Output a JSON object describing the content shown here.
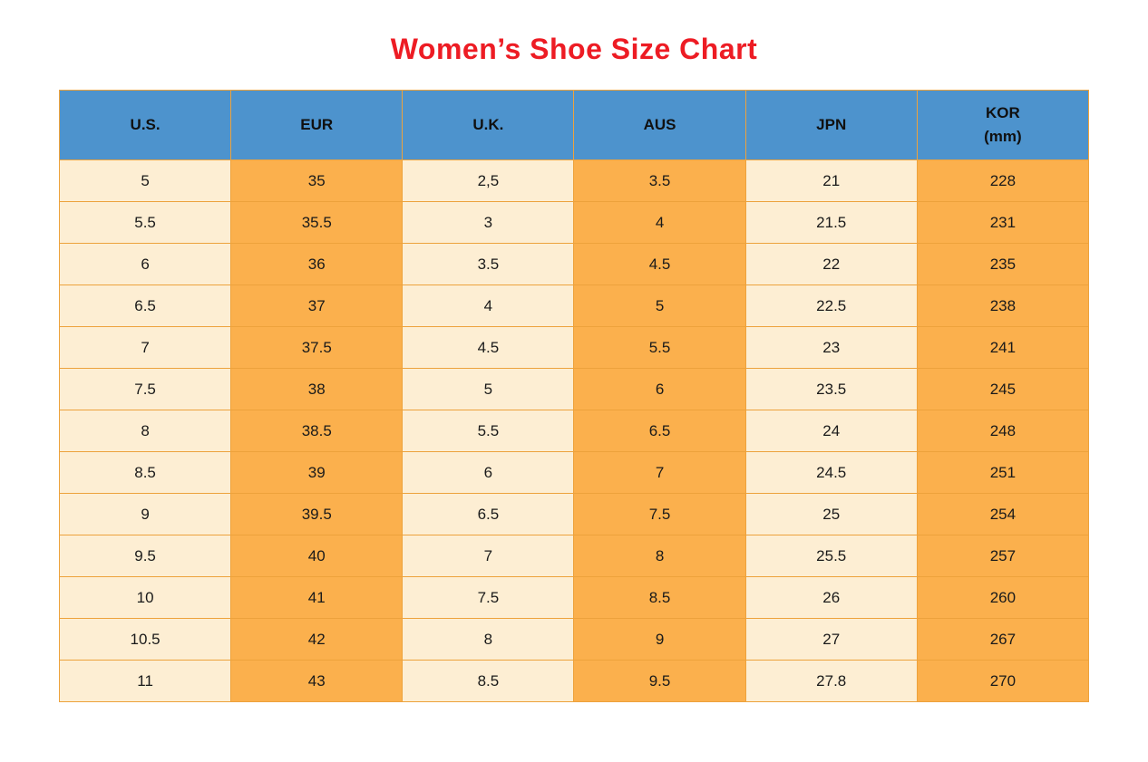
{
  "title": "Women’s Shoe Size Chart",
  "colors": {
    "title_red": "#ed1c24",
    "header_blue": "#4d93cd",
    "column_light": "#fdeed3",
    "column_orange": "#fbb04d",
    "border_orange": "#eda23c",
    "text_dark": "#1a1a1a"
  },
  "chart_data": {
    "type": "table",
    "title": "Women’s Shoe Size Chart",
    "columns": [
      "U.S.",
      "EUR",
      "U.K.",
      "AUS",
      "JPN",
      "KOR\n(mm)"
    ],
    "rows": [
      [
        "5",
        "35",
        "2,5",
        "3.5",
        "21",
        "228"
      ],
      [
        "5.5",
        "35.5",
        "3",
        "4",
        "21.5",
        "231"
      ],
      [
        "6",
        "36",
        "3.5",
        "4.5",
        "22",
        "235"
      ],
      [
        "6.5",
        "37",
        "4",
        "5",
        "22.5",
        "238"
      ],
      [
        "7",
        "37.5",
        "4.5",
        "5.5",
        "23",
        "241"
      ],
      [
        "7.5",
        "38",
        "5",
        "6",
        "23.5",
        "245"
      ],
      [
        "8",
        "38.5",
        "5.5",
        "6.5",
        "24",
        "248"
      ],
      [
        "8.5",
        "39",
        "6",
        "7",
        "24.5",
        "251"
      ],
      [
        "9",
        "39.5",
        "6.5",
        "7.5",
        "25",
        "254"
      ],
      [
        "9.5",
        "40",
        "7",
        "8",
        "25.5",
        "257"
      ],
      [
        "10",
        "41",
        "7.5",
        "8.5",
        "26",
        "260"
      ],
      [
        "10.5",
        "42",
        "8",
        "9",
        "27",
        "267"
      ],
      [
        "11",
        "43",
        "8.5",
        "9.5",
        "27.8",
        "270"
      ]
    ]
  }
}
